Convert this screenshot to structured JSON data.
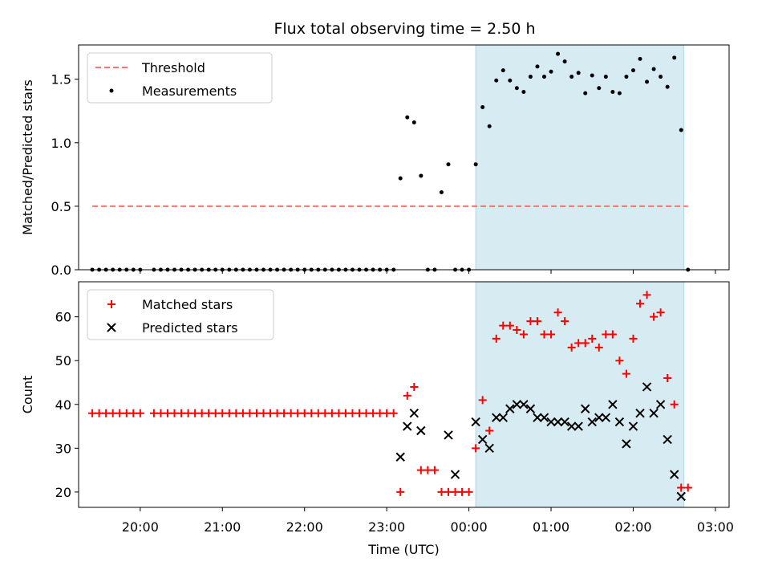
{
  "title": "Flux total observing time = 2.50 h",
  "colors": {
    "matched": "#ff0000",
    "predicted": "#000000",
    "threshold": "#ff7070",
    "span": "#add8e6",
    "measurement": "#000000"
  },
  "chart_data": [
    {
      "type": "scatter",
      "ylabel": "Matched/Predicted stars",
      "xlabel": "",
      "ylim": [
        0,
        1.77
      ],
      "yticks": [
        "0.0",
        "0.5",
        "1.0",
        "1.5"
      ],
      "yticks_values": [
        0,
        0.5,
        1.0,
        1.5
      ],
      "legend": [
        "Threshold",
        "Measurements"
      ],
      "legend_position": "top-left",
      "threshold": {
        "value": 0.5,
        "from": "19:25",
        "to": "02:40"
      },
      "shaded_span": {
        "from": "00:05",
        "to": "02:37"
      },
      "series": [
        {
          "name": "Measurements",
          "x": [
            "19:25",
            "19:30",
            "19:35",
            "19:40",
            "19:45",
            "19:50",
            "19:55",
            "20:00",
            "20:05",
            "20:10",
            "20:15",
            "20:20",
            "20:25",
            "20:30",
            "20:35",
            "20:40",
            "20:45",
            "20:50",
            "20:55",
            "21:00",
            "21:05",
            "21:10",
            "21:15",
            "21:20",
            "21:25",
            "21:30",
            "21:35",
            "21:40",
            "21:45",
            "21:50",
            "21:55",
            "22:00",
            "22:05",
            "22:10",
            "22:15",
            "22:20",
            "22:25",
            "22:30",
            "22:35",
            "22:40",
            "22:45",
            "22:50",
            "22:55",
            "23:00",
            "23:05",
            "23:10",
            "23:15",
            "23:20",
            "23:25",
            "23:30",
            "23:35",
            "23:40",
            "23:45",
            "23:50",
            "23:55",
            "00:00",
            "00:05",
            "00:10",
            "00:15",
            "00:20",
            "00:25",
            "00:30",
            "00:35",
            "00:40",
            "00:45",
            "00:50",
            "00:55",
            "01:00",
            "01:05",
            "01:10",
            "01:15",
            "01:20",
            "01:25",
            "01:30",
            "01:35",
            "01:40",
            "01:45",
            "01:50",
            "01:55",
            "02:00",
            "02:05",
            "02:10",
            "02:15",
            "02:20",
            "02:25",
            "02:30",
            "02:35",
            "02:40"
          ],
          "y": [
            0,
            0,
            0,
            0,
            0,
            0,
            0,
            0,
            null,
            0,
            0,
            0,
            0,
            0,
            0,
            0,
            0,
            0,
            0,
            0,
            0,
            0,
            0,
            0,
            0,
            0,
            0,
            0,
            0,
            0,
            0,
            0,
            0,
            0,
            0,
            0,
            0,
            0,
            0,
            0,
            0,
            0,
            0,
            0,
            0,
            0.72,
            1.2,
            1.16,
            0.74,
            0,
            0,
            0.61,
            0.83,
            0,
            0,
            0,
            0.83,
            1.28,
            1.13,
            1.49,
            1.57,
            1.49,
            1.43,
            1.4,
            1.52,
            1.6,
            1.52,
            1.56,
            1.7,
            1.64,
            1.52,
            1.55,
            1.39,
            1.53,
            1.43,
            1.52,
            1.4,
            1.39,
            1.52,
            1.57,
            1.66,
            1.48,
            1.58,
            1.52,
            1.44,
            1.67,
            1.1,
            0
          ]
        }
      ]
    },
    {
      "type": "scatter",
      "ylabel": "Count",
      "xlabel": "Time (UTC)",
      "ylim": [
        16.5,
        68
      ],
      "yticks": [
        "20",
        "30",
        "40",
        "50",
        "60"
      ],
      "yticks_values": [
        20,
        30,
        40,
        50,
        60
      ],
      "xticks": [
        "20:00",
        "21:00",
        "22:00",
        "23:00",
        "00:00",
        "01:00",
        "02:00",
        "03:00"
      ],
      "legend": [
        "Matched stars",
        "Predicted stars"
      ],
      "legend_position": "top-left",
      "shaded_span": {
        "from": "00:05",
        "to": "02:37"
      },
      "series": [
        {
          "name": "Matched stars",
          "x": [
            "19:25",
            "19:30",
            "19:35",
            "19:40",
            "19:45",
            "19:50",
            "19:55",
            "20:00",
            "20:10",
            "20:15",
            "20:20",
            "20:25",
            "20:30",
            "20:35",
            "20:40",
            "20:45",
            "20:50",
            "20:55",
            "21:00",
            "21:05",
            "21:10",
            "21:15",
            "21:20",
            "21:25",
            "21:30",
            "21:35",
            "21:40",
            "21:45",
            "21:50",
            "21:55",
            "22:00",
            "22:05",
            "22:10",
            "22:15",
            "22:20",
            "22:25",
            "22:30",
            "22:35",
            "22:40",
            "22:45",
            "22:50",
            "22:55",
            "23:00",
            "23:05",
            "23:10",
            "23:15",
            "23:20",
            "23:25",
            "23:30",
            "23:35",
            "23:40",
            "23:45",
            "23:50",
            "23:55",
            "00:00",
            "00:05",
            "00:10",
            "00:15",
            "00:20",
            "00:25",
            "00:30",
            "00:35",
            "00:40",
            "00:45",
            "00:50",
            "00:55",
            "01:00",
            "01:05",
            "01:10",
            "01:15",
            "01:20",
            "01:25",
            "01:30",
            "01:35",
            "01:40",
            "01:45",
            "01:50",
            "01:55",
            "02:00",
            "02:05",
            "02:10",
            "02:15",
            "02:20",
            "02:25",
            "02:30",
            "02:35",
            "02:40"
          ],
          "y": [
            38,
            38,
            38,
            38,
            38,
            38,
            38,
            38,
            38,
            38,
            38,
            38,
            38,
            38,
            38,
            38,
            38,
            38,
            38,
            38,
            38,
            38,
            38,
            38,
            38,
            38,
            38,
            38,
            38,
            38,
            38,
            38,
            38,
            38,
            38,
            38,
            38,
            38,
            38,
            38,
            38,
            38,
            38,
            38,
            20,
            42,
            44,
            25,
            25,
            25,
            20,
            20,
            20,
            20,
            20,
            30,
            41,
            34,
            55,
            58,
            58,
            57,
            56,
            59,
            59,
            56,
            56,
            61,
            59,
            53,
            54,
            54,
            55,
            53,
            56,
            56,
            50,
            47,
            55,
            63,
            65,
            60,
            61,
            46,
            40,
            21,
            21
          ]
        },
        {
          "name": "Predicted stars",
          "x": [
            "23:10",
            "23:15",
            "23:20",
            "23:25",
            "23:45",
            "23:50",
            "00:05",
            "00:10",
            "00:15",
            "00:20",
            "00:25",
            "00:30",
            "00:35",
            "00:40",
            "00:45",
            "00:50",
            "00:55",
            "01:00",
            "01:05",
            "01:10",
            "01:15",
            "01:20",
            "01:25",
            "01:30",
            "01:35",
            "01:40",
            "01:45",
            "01:50",
            "01:55",
            "02:00",
            "02:05",
            "02:10",
            "02:15",
            "02:20",
            "02:25",
            "02:30",
            "02:35"
          ],
          "y": [
            28,
            35,
            38,
            34,
            33,
            24,
            36,
            32,
            30,
            37,
            37,
            39,
            40,
            40,
            39,
            37,
            37,
            36,
            36,
            36,
            35,
            35,
            39,
            36,
            37,
            37,
            40,
            36,
            31,
            35,
            38,
            44,
            38,
            40,
            32,
            24,
            19
          ]
        }
      ]
    }
  ]
}
